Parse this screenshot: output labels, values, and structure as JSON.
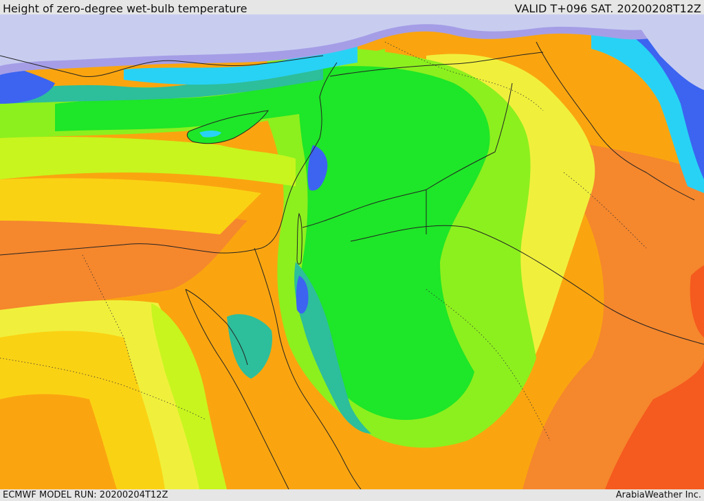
{
  "header": {
    "title": "Height of zero-degree wet-bulb temperature",
    "valid_time": "VALID T+096 SAT. 20200208T12Z"
  },
  "footer": {
    "model_run": "ECMWF MODEL RUN: 20200204T12Z",
    "credit": "ArabiaWeather Inc."
  },
  "palette": {
    "sea_ice": "#c8cdf0",
    "violet": "#a59ee6",
    "blue": "#3c64f0",
    "cyan": "#28d2f5",
    "teal": "#2dbe9b",
    "green": "#1ee628",
    "light_green": "#8cf01e",
    "yellow_green": "#c8f51e",
    "yellow": "#f0f03c",
    "gold": "#fad214",
    "orange": "#faa50f",
    "dark_orange": "#f5872d",
    "red_orange": "#f55a1e"
  }
}
